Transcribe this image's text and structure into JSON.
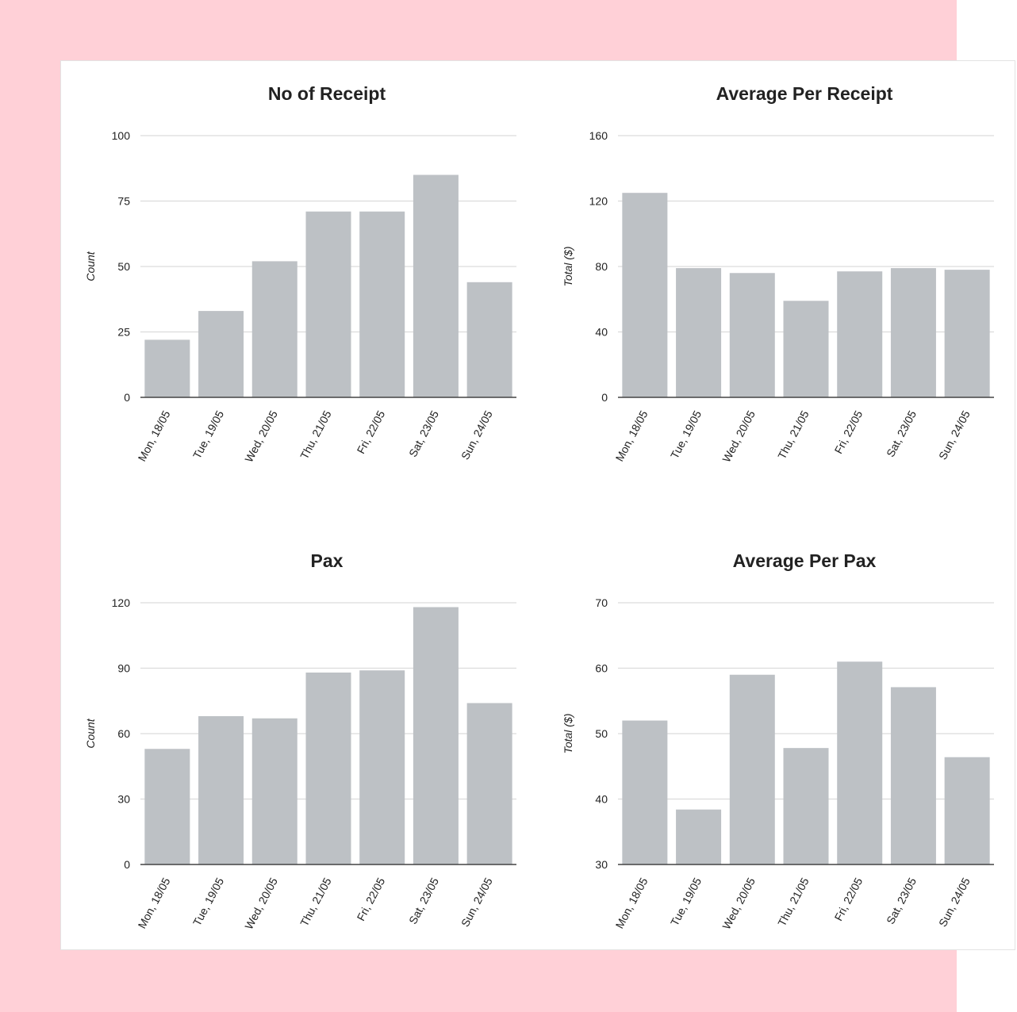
{
  "colors": {
    "background": "#ffd0d7",
    "bar": "#bdc1c5",
    "grid": "#dcdcdc",
    "axis": "#444444",
    "text": "#222222"
  },
  "chart_data": [
    {
      "type": "bar",
      "title": "No of Receipt",
      "xlabel": "",
      "ylabel": "Count",
      "categories": [
        "Mon, 18/05",
        "Tue, 19/05",
        "Wed, 20/05",
        "Thu, 21/05",
        "Fri, 22/05",
        "Sat, 23/05",
        "Sun, 24/05"
      ],
      "values": [
        22,
        33,
        52,
        71,
        71,
        85,
        44
      ],
      "ylim": [
        0,
        100
      ],
      "yticks": [
        0,
        25,
        50,
        75,
        100
      ],
      "grid": true,
      "legend": "none"
    },
    {
      "type": "bar",
      "title": "Average Per Receipt",
      "xlabel": "",
      "ylabel": "Total ($)",
      "categories": [
        "Mon, 18/05",
        "Tue, 19/05",
        "Wed, 20/05",
        "Thu, 21/05",
        "Fri, 22/05",
        "Sat, 23/05",
        "Sun, 24/05"
      ],
      "values": [
        125,
        79,
        76,
        59,
        77,
        79,
        78
      ],
      "ylim": [
        0,
        160
      ],
      "yticks": [
        0,
        40,
        80,
        120,
        160
      ],
      "grid": true,
      "legend": "none"
    },
    {
      "type": "bar",
      "title": "Pax",
      "xlabel": "",
      "ylabel": "Count",
      "categories": [
        "Mon, 18/05",
        "Tue, 19/05",
        "Wed, 20/05",
        "Thu, 21/05",
        "Fri, 22/05",
        "Sat, 23/05",
        "Sun, 24/05"
      ],
      "values": [
        53,
        68,
        67,
        88,
        89,
        118,
        74
      ],
      "ylim": [
        0,
        120
      ],
      "yticks": [
        0,
        30,
        60,
        90,
        120
      ],
      "grid": true,
      "legend": "none"
    },
    {
      "type": "bar",
      "title": "Average Per Pax",
      "xlabel": "",
      "ylabel": "Total ($)",
      "categories": [
        "Mon, 18/05",
        "Tue, 19/05",
        "Wed, 20/05",
        "Thu, 21/05",
        "Fri, 22/05",
        "Sat, 23/05",
        "Sun, 24/05"
      ],
      "values": [
        52,
        38.4,
        59,
        47.8,
        61,
        57.1,
        46.4
      ],
      "ylim": [
        30,
        70
      ],
      "yticks": [
        30,
        40,
        50,
        60,
        70
      ],
      "grid": true,
      "legend": "none"
    }
  ]
}
